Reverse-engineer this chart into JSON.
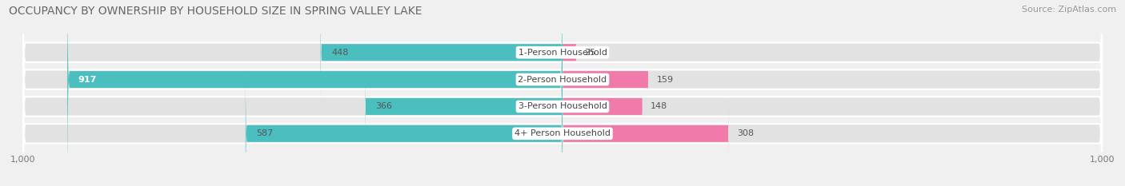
{
  "title": "OCCUPANCY BY OWNERSHIP BY HOUSEHOLD SIZE IN SPRING VALLEY LAKE",
  "source": "Source: ZipAtlas.com",
  "categories": [
    "1-Person Household",
    "2-Person Household",
    "3-Person Household",
    "4+ Person Household"
  ],
  "owner_values": [
    448,
    917,
    366,
    587
  ],
  "renter_values": [
    25,
    159,
    148,
    308
  ],
  "owner_color": "#4bbfbf",
  "renter_color": "#f07aaa",
  "background_color": "#f0f0f0",
  "bar_bg_color": "#e2e2e2",
  "axis_max": 1000,
  "title_fontsize": 10,
  "source_fontsize": 8,
  "label_fontsize": 8,
  "tick_fontsize": 8,
  "legend_fontsize": 8.5
}
